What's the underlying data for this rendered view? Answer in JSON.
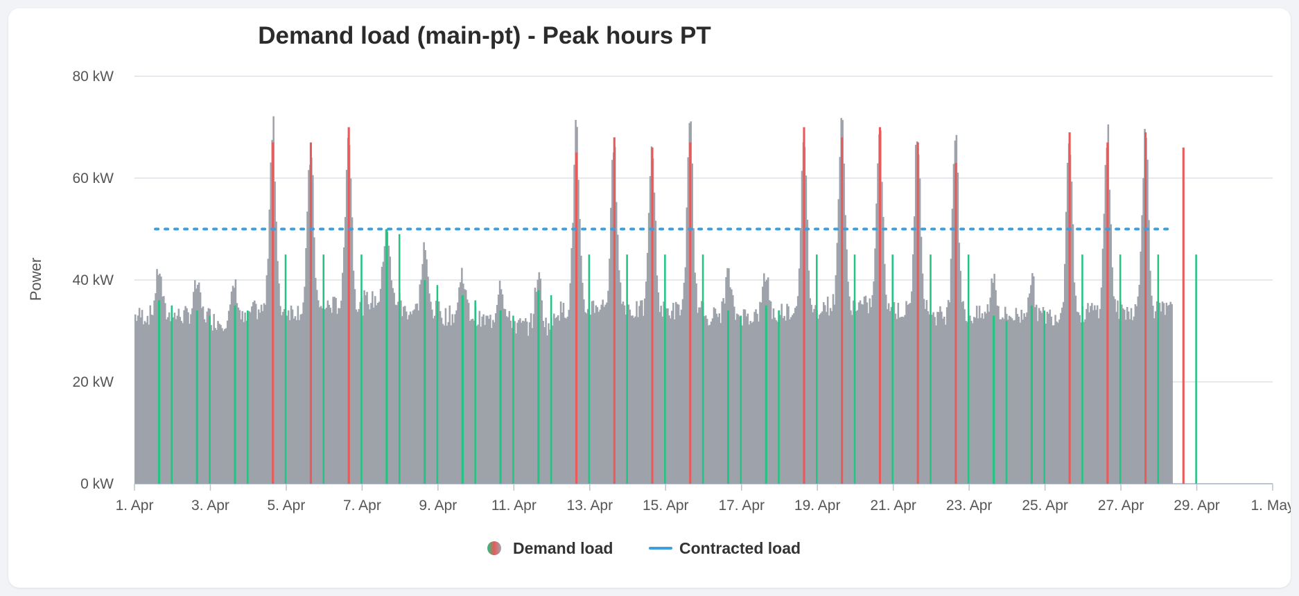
{
  "chart_data": {
    "type": "bar",
    "title": "Demand load (main-pt) - Peak hours PT",
    "ylabel": "Power",
    "xlabel": "",
    "y_unit": "kW",
    "ylim": [
      0,
      80
    ],
    "y_ticks": [
      0,
      20,
      40,
      60,
      80
    ],
    "y_tick_labels": [
      "0 kW",
      "20 kW",
      "40 kW",
      "60 kW",
      "80 kW"
    ],
    "x_range": [
      "2024-04-01",
      "2024-05-01"
    ],
    "x_ticks": [
      "2024-04-01",
      "2024-04-03",
      "2024-04-05",
      "2024-04-07",
      "2024-04-09",
      "2024-04-11",
      "2024-04-13",
      "2024-04-15",
      "2024-04-17",
      "2024-04-19",
      "2024-04-21",
      "2024-04-23",
      "2024-04-25",
      "2024-04-27",
      "2024-04-29",
      "2024-05-01"
    ],
    "x_tick_labels": [
      "1. Apr",
      "3. Apr",
      "5. Apr",
      "7. Apr",
      "9. Apr",
      "11. Apr",
      "13. Apr",
      "15. Apr",
      "17. Apr",
      "19. Apr",
      "21. Apr",
      "23. Apr",
      "25. Apr",
      "27. Apr",
      "29. Apr",
      "1. May"
    ],
    "grid": true,
    "legend_position": "bottom",
    "series": [
      {
        "name": "Demand load",
        "kind": "bar",
        "colors": {
          "normal": "#9ea3ab",
          "peak_over": "#e85b5b",
          "peak_under": "#23c483"
        },
        "x_start": "2024-04-01",
        "x_end": "2024-04-28",
        "daily_profile": [
          {
            "date": "2024-04-01",
            "high": 43,
            "base": 33
          },
          {
            "date": "2024-04-02",
            "high": 40,
            "base": 33
          },
          {
            "date": "2024-04-03",
            "high": 40,
            "base": 32
          },
          {
            "date": "2024-04-04",
            "high": 74,
            "base": 34
          },
          {
            "date": "2024-04-05",
            "high": 69,
            "base": 34
          },
          {
            "date": "2024-04-06",
            "high": 72,
            "base": 35
          },
          {
            "date": "2024-04-07",
            "high": 53,
            "base": 36
          },
          {
            "date": "2024-04-08",
            "high": 47,
            "base": 34
          },
          {
            "date": "2024-04-09",
            "high": 42,
            "base": 33
          },
          {
            "date": "2024-04-10",
            "high": 41,
            "base": 32
          },
          {
            "date": "2024-04-11",
            "high": 42,
            "base": 31
          },
          {
            "date": "2024-04-12",
            "high": 72,
            "base": 34
          },
          {
            "date": "2024-04-13",
            "high": 69,
            "base": 35
          },
          {
            "date": "2024-04-14",
            "high": 70,
            "base": 34
          },
          {
            "date": "2024-04-15",
            "high": 72,
            "base": 34
          },
          {
            "date": "2024-04-16",
            "high": 42,
            "base": 33
          },
          {
            "date": "2024-04-17",
            "high": 42,
            "base": 33
          },
          {
            "date": "2024-04-18",
            "high": 70,
            "base": 34
          },
          {
            "date": "2024-04-19",
            "high": 74,
            "base": 35
          },
          {
            "date": "2024-04-20",
            "high": 73,
            "base": 35
          },
          {
            "date": "2024-04-21",
            "high": 72,
            "base": 34
          },
          {
            "date": "2024-04-22",
            "high": 72,
            "base": 33
          },
          {
            "date": "2024-04-23",
            "high": 41,
            "base": 33
          },
          {
            "date": "2024-04-24",
            "high": 41,
            "base": 33
          },
          {
            "date": "2024-04-25",
            "high": 72,
            "base": 33
          },
          {
            "date": "2024-04-26",
            "high": 72,
            "base": 34
          },
          {
            "date": "2024-04-27",
            "high": 73,
            "base": 34
          },
          {
            "date": "2024-04-28",
            "high": 72,
            "base": 34
          }
        ],
        "peak_markers": [
          {
            "date": "2024-04-01",
            "value": 36,
            "over": false
          },
          {
            "date": "2024-04-02",
            "value": 34,
            "over": false
          },
          {
            "date": "2024-04-03",
            "value": 35,
            "over": false
          },
          {
            "date": "2024-04-04",
            "value": 67,
            "over": true
          },
          {
            "date": "2024-04-05",
            "value": 67,
            "over": true
          },
          {
            "date": "2024-04-06",
            "value": 70,
            "over": true
          },
          {
            "date": "2024-04-07",
            "value": 50,
            "over": false
          },
          {
            "date": "2024-04-08",
            "value": 40,
            "over": false
          },
          {
            "date": "2024-04-09",
            "value": 37,
            "over": false
          },
          {
            "date": "2024-04-10",
            "value": 34,
            "over": false
          },
          {
            "date": "2024-04-11",
            "value": 38,
            "over": false
          },
          {
            "date": "2024-04-12",
            "value": 65,
            "over": true
          },
          {
            "date": "2024-04-13",
            "value": 68,
            "over": true
          },
          {
            "date": "2024-04-14",
            "value": 66,
            "over": true
          },
          {
            "date": "2024-04-15",
            "value": 67,
            "over": true
          },
          {
            "date": "2024-04-16",
            "value": 34,
            "over": false
          },
          {
            "date": "2024-04-17",
            "value": 35,
            "over": false
          },
          {
            "date": "2024-04-18",
            "value": 70,
            "over": true
          },
          {
            "date": "2024-04-19",
            "value": 68,
            "over": true
          },
          {
            "date": "2024-04-20",
            "value": 70,
            "over": true
          },
          {
            "date": "2024-04-21",
            "value": 67,
            "over": true
          },
          {
            "date": "2024-04-22",
            "value": 63,
            "over": true
          },
          {
            "date": "2024-04-23",
            "value": 33,
            "over": false
          },
          {
            "date": "2024-04-24",
            "value": 35,
            "over": false
          },
          {
            "date": "2024-04-25",
            "value": 69,
            "over": true
          },
          {
            "date": "2024-04-26",
            "value": 67,
            "over": true
          },
          {
            "date": "2024-04-27",
            "value": 69,
            "over": true
          },
          {
            "date": "2024-04-28",
            "value": 66,
            "over": true
          }
        ]
      },
      {
        "name": "Contracted load",
        "kind": "line",
        "color": "#3b9fe0",
        "style": "dotted",
        "x_start": "2024-04-01",
        "x_end": "2024-04-28",
        "value": 50
      }
    ]
  }
}
